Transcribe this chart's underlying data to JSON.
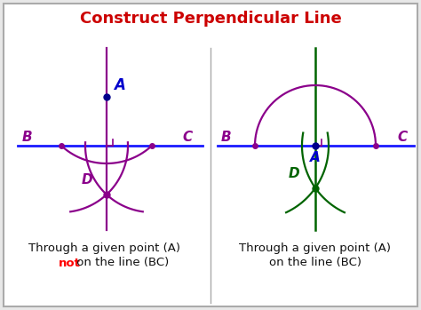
{
  "title": "Construct Perpendicular Line",
  "title_color": "#cc0000",
  "title_fontsize": 13,
  "background_color": "#e8e8e8",
  "panel_background": "#ffffff",
  "border_color": "#aaaaaa",
  "blue_line_color": "#1a1aff",
  "purple_color": "#8B008B",
  "green_color": "#006400",
  "dot_color": "#00008B",
  "label_A_color": "#0000cc",
  "label_BCD_left_color": "#8B008B",
  "label_BCD_right_color": "#006400",
  "label_A_right_color": "#0000cc",
  "text1_line1": "Through a given point (A)",
  "text1_line2_red": "not",
  "text1_line2_rest": " on the line (BC)",
  "text2_line1": "Through a given point (A)",
  "text2_line2": "on the line (BC)",
  "text_fontsize": 9.5,
  "text_color": "#111111",
  "text_red_color": "#ff0000"
}
